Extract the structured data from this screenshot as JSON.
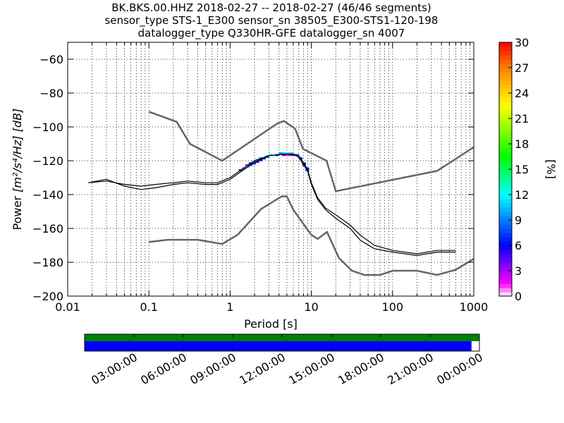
{
  "header": {
    "line1": "BK.BKS.00.HHZ   2018-02-27 -- 2018-02-27  (46/46 segments)",
    "line2": "sensor_type STS-1_E300 sensor_sn 38505_E300-STS1-120-198",
    "line3": "datalogger_type Q330HR-GFE datalogger_sn 4007"
  },
  "chart_data": [
    {
      "type": "heatmap",
      "subtype": "probabilistic-power-spectral-density",
      "xlabel": "Period [s]",
      "ylabel_prefix": "Power ",
      "ylabel_units": "[m²/s⁴/Hz] [dB]",
      "xscale": "log",
      "xlim": [
        0.01,
        1000
      ],
      "ylim": [
        -200,
        -50
      ],
      "x_ticks": [
        0.01,
        0.1,
        1,
        10,
        100,
        1000
      ],
      "x_tick_labels": [
        "0.01",
        "0.1",
        "1",
        "10",
        "100",
        "1000"
      ],
      "y_ticks": [
        -200,
        -180,
        -160,
        -140,
        -120,
        -100,
        -80,
        -60
      ],
      "y_tick_labels": [
        "−200",
        "−180",
        "−160",
        "−140",
        "−120",
        "−100",
        "−80",
        "−60"
      ],
      "grid": true,
      "colorbar": {
        "label": "[%]",
        "range": [
          0,
          30
        ],
        "ticks": [
          0,
          3,
          6,
          9,
          12,
          15,
          18,
          21,
          24,
          27,
          30
        ],
        "colormap": "pqlx"
      },
      "series": [
        {
          "role": "new-high-noise-model",
          "color": "#666666",
          "points": [
            [
              0.1,
              -91
            ],
            [
              0.22,
              -97
            ],
            [
              0.32,
              -110
            ],
            [
              0.8,
              -120
            ],
            [
              3.8,
              -98
            ],
            [
              4.6,
              -96.5
            ],
            [
              6.3,
              -101
            ],
            [
              7.9,
              -113
            ],
            [
              15.4,
              -120
            ],
            [
              20,
              -138
            ],
            [
              354,
              -126
            ],
            [
              1000,
              -112
            ]
          ]
        },
        {
          "role": "new-low-noise-model",
          "color": "#666666",
          "points": [
            [
              0.1,
              -168
            ],
            [
              0.17,
              -166.7
            ],
            [
              0.4,
              -166.7
            ],
            [
              0.8,
              -169.2
            ],
            [
              1.24,
              -163.7
            ],
            [
              2.4,
              -148.6
            ],
            [
              4.3,
              -141.1
            ],
            [
              5,
              -141.1
            ],
            [
              6,
              -149
            ],
            [
              10,
              -163.8
            ],
            [
              12,
              -166.2
            ],
            [
              15.6,
              -162.1
            ],
            [
              21.9,
              -177.5
            ],
            [
              31.6,
              -185
            ],
            [
              45,
              -187.5
            ],
            [
              70,
              -187.5
            ],
            [
              101,
              -185
            ],
            [
              200,
              -185
            ],
            [
              354,
              -187.5
            ],
            [
              600,
              -184.4
            ],
            [
              1000,
              -178
            ]
          ]
        },
        {
          "role": "mode",
          "color": "#000000",
          "points": [
            [
              0.018,
              -133
            ],
            [
              0.03,
              -131
            ],
            [
              0.05,
              -135
            ],
            [
              0.08,
              -137
            ],
            [
              0.12,
              -136
            ],
            [
              0.2,
              -134
            ],
            [
              0.3,
              -133
            ],
            [
              0.5,
              -134
            ],
            [
              0.7,
              -134
            ],
            [
              1,
              -131
            ],
            [
              1.5,
              -125
            ],
            [
              2,
              -121
            ],
            [
              3,
              -117
            ],
            [
              5,
              -116
            ],
            [
              6,
              -116
            ],
            [
              7,
              -118
            ],
            [
              9,
              -126
            ],
            [
              10,
              -134
            ],
            [
              12,
              -143
            ],
            [
              15,
              -149
            ],
            [
              20,
              -154
            ],
            [
              30,
              -160
            ],
            [
              40,
              -167
            ],
            [
              60,
              -172
            ],
            [
              100,
              -174
            ],
            [
              200,
              -176
            ],
            [
              354,
              -174
            ],
            [
              600,
              -174
            ]
          ]
        },
        {
          "role": "mean",
          "color": "#000000",
          "points": [
            [
              0.018,
              -133
            ],
            [
              0.03,
              -132
            ],
            [
              0.05,
              -134
            ],
            [
              0.08,
              -135
            ],
            [
              0.12,
              -134
            ],
            [
              0.2,
              -133
            ],
            [
              0.3,
              -132
            ],
            [
              0.5,
              -133
            ],
            [
              0.7,
              -133
            ],
            [
              1,
              -130
            ],
            [
              1.5,
              -124
            ],
            [
              2,
              -120
            ],
            [
              3,
              -117
            ],
            [
              5,
              -116
            ],
            [
              7,
              -117
            ],
            [
              9,
              -125
            ],
            [
              10,
              -133
            ],
            [
              12,
              -142
            ],
            [
              15,
              -148
            ],
            [
              20,
              -152
            ],
            [
              30,
              -158
            ],
            [
              40,
              -164
            ],
            [
              60,
              -170
            ],
            [
              100,
              -173
            ],
            [
              200,
              -175
            ],
            [
              354,
              -173
            ],
            [
              600,
              -173
            ]
          ]
        },
        {
          "role": "density-upper-edge",
          "points": [
            [
              0.03,
              -127
            ],
            [
              0.05,
              -130
            ],
            [
              0.1,
              -129
            ],
            [
              0.2,
              -126
            ],
            [
              0.3,
              -125
            ],
            [
              0.4,
              -127
            ],
            [
              0.6,
              -131
            ],
            [
              1,
              -127
            ],
            [
              1.5,
              -122
            ],
            [
              3,
              -117
            ],
            [
              5,
              -115
            ],
            [
              7,
              -115
            ],
            [
              9,
              -124
            ],
            [
              12,
              -136
            ],
            [
              20,
              -145
            ],
            [
              40,
              -155
            ],
            [
              70,
              -163
            ],
            [
              150,
              -167
            ],
            [
              600,
              -166
            ]
          ]
        },
        {
          "role": "density-lower-edge",
          "points": [
            [
              0.03,
              -135
            ],
            [
              0.05,
              -139
            ],
            [
              0.08,
              -141
            ],
            [
              0.12,
              -140
            ],
            [
              0.2,
              -139
            ],
            [
              0.3,
              -138
            ],
            [
              0.5,
              -138
            ],
            [
              0.7,
              -137
            ],
            [
              1,
              -134
            ],
            [
              1.5,
              -127
            ],
            [
              2,
              -123
            ],
            [
              3,
              -120
            ],
            [
              5,
              -118
            ],
            [
              7,
              -120
            ],
            [
              9,
              -128
            ],
            [
              12,
              -150
            ],
            [
              20,
              -168
            ],
            [
              30,
              -177
            ],
            [
              50,
              -181
            ],
            [
              100,
              -181
            ],
            [
              200,
              -180
            ],
            [
              354,
              -177
            ],
            [
              600,
              -176
            ]
          ]
        }
      ]
    },
    {
      "type": "timeline",
      "role": "data-availability",
      "tick_labels": [
        "03:00:00",
        "06:00:00",
        "09:00:00",
        "12:00:00",
        "15:00:00",
        "18:00:00",
        "21:00:00",
        "00:00:00"
      ],
      "tick_hours": [
        3,
        6,
        9,
        12,
        15,
        18,
        21,
        24
      ],
      "range_hours": [
        0,
        24
      ],
      "processed_coverage_fraction": 0.98,
      "total_coverage_fraction": 1.0,
      "colors": {
        "processed": "#0000ff",
        "available": "#008000"
      }
    }
  ]
}
